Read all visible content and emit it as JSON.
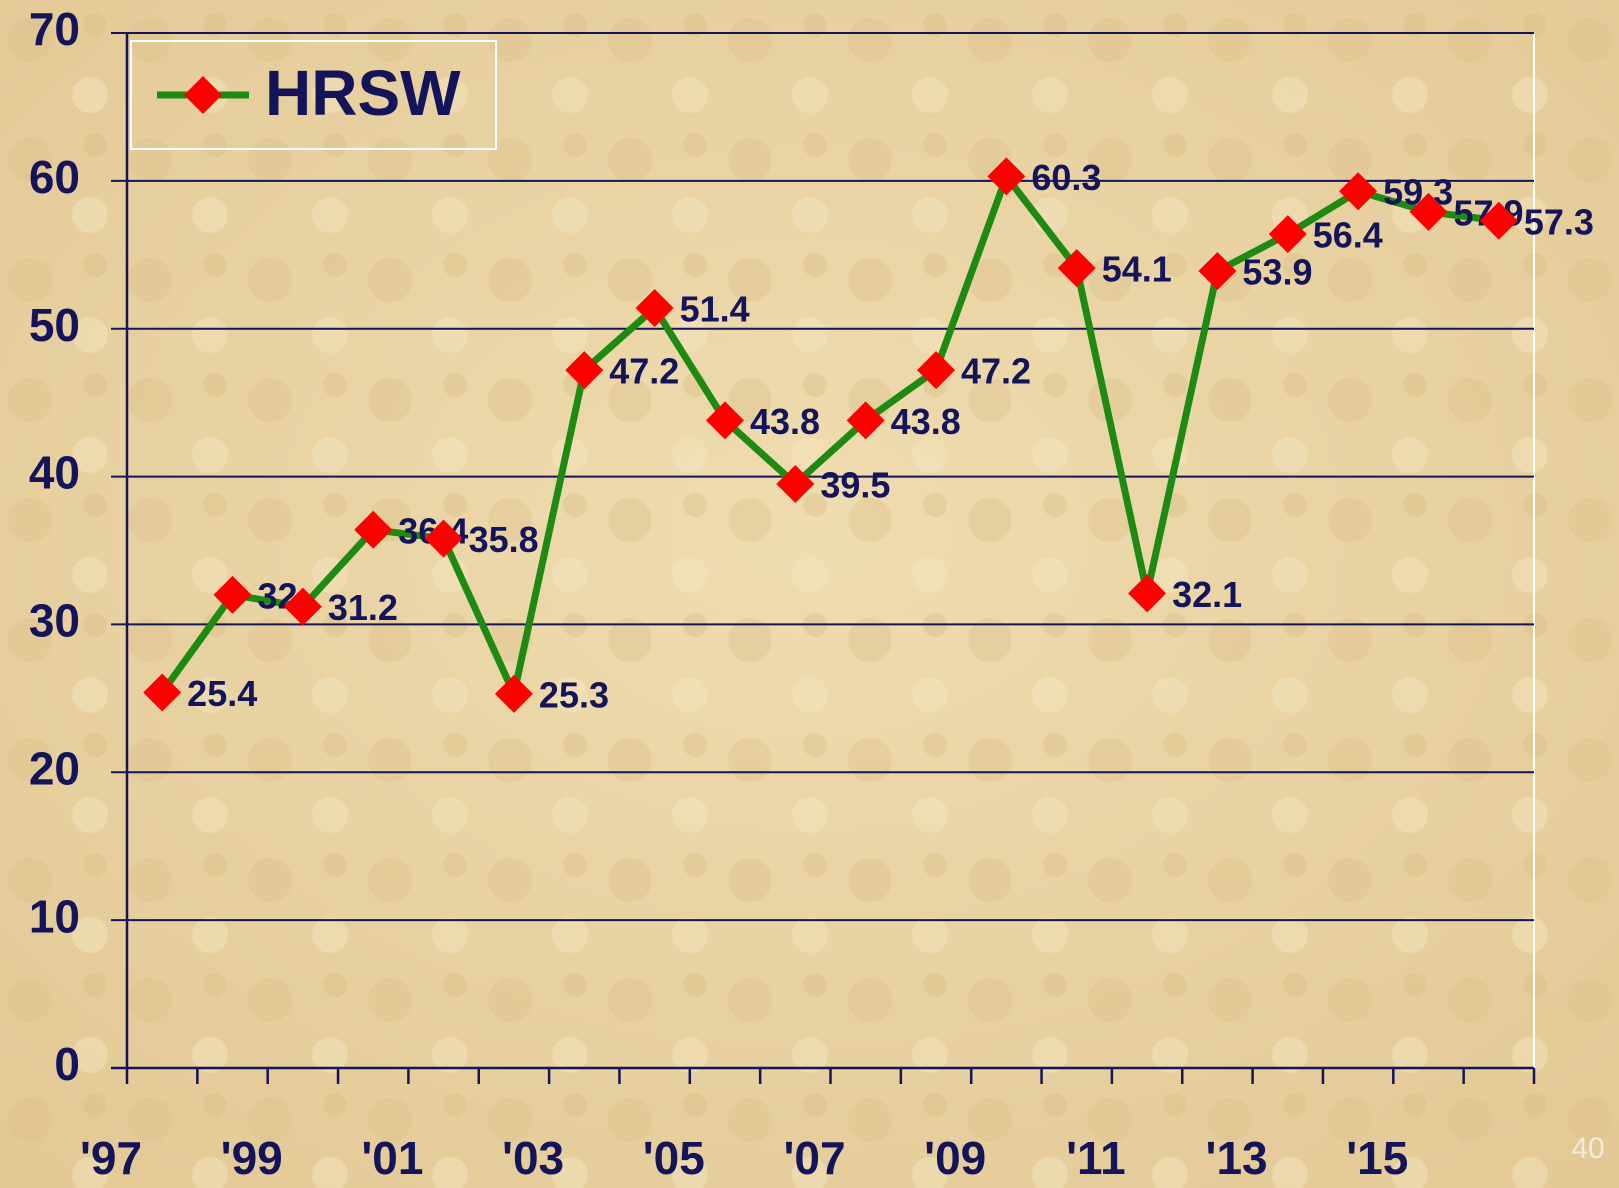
{
  "chart_data": {
    "type": "line",
    "categories": [
      "'97",
      null,
      "'99",
      null,
      "'01",
      null,
      "'03",
      null,
      "'05",
      null,
      "'07",
      null,
      "'09",
      null,
      "'11",
      null,
      "'13",
      null,
      "'15",
      null
    ],
    "series": [
      {
        "name": "HRSW",
        "color": "#1e8a12",
        "marker_color": "#ff0000",
        "values": [
          25.4,
          32,
          31.2,
          36.4,
          35.8,
          25.3,
          47.2,
          51.4,
          43.8,
          39.5,
          43.8,
          47.2,
          60.3,
          54.1,
          32.1,
          53.9,
          56.4,
          59.3,
          57.9,
          57.3
        ]
      }
    ],
    "ylim": [
      0,
      70
    ],
    "yticks": [
      0,
      10,
      20,
      30,
      40,
      50,
      60,
      70
    ],
    "grid": true,
    "legend": "upper left"
  },
  "page_number": "40"
}
